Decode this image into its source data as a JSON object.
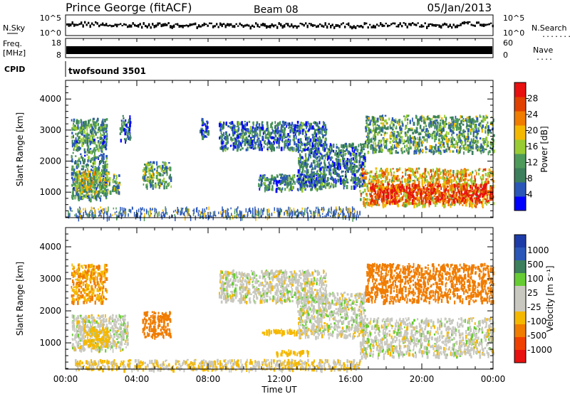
{
  "header": {
    "station": "Prince George (fitACF)",
    "beam": "Beam 08",
    "date": "05/Jan/2013"
  },
  "top_panels": {
    "nsky_label": "N.Sky",
    "nsky_ticks": [
      "10^5",
      "10^0"
    ],
    "nsearch_label": "N.Search",
    "nsearch_ticks": [
      "10^5",
      "10^0"
    ],
    "freq_label": "Freq.",
    "freq_unit": "[MHz]",
    "freq_ticks": [
      "18",
      "8"
    ],
    "nave_label": "Nave",
    "nave_ticks": [
      "60",
      "0"
    ],
    "cpid_label": "CPID",
    "cpid_value": "twofsound 3501"
  },
  "colors": {
    "power": [
      "#0000ff",
      "#2a57b8",
      "#3c7f5c",
      "#4e9a5a",
      "#99cc33",
      "#f5b800",
      "#f07c00",
      "#e04000",
      "#e81010"
    ],
    "velocity": [
      "#e81010",
      "#f04000",
      "#f07c00",
      "#f5b800",
      "#c8c8c0",
      "#c8c8c0",
      "#66cc33",
      "#3c7f5c",
      "#2a57b8",
      "#1e3ca8"
    ]
  },
  "chart_data": [
    {
      "type": "heatmap",
      "name": "power",
      "ylabel": "Slant Range [km]",
      "ylim": [
        180,
        4600
      ],
      "yticks": [
        "4000",
        "3000",
        "2000",
        "1000"
      ],
      "xlim": [
        0,
        24
      ],
      "colorbar": {
        "label": "Power [dB]",
        "range": [
          0,
          32
        ],
        "ticks": [
          "28",
          "24",
          "20",
          "16",
          "12",
          "8",
          "4"
        ]
      },
      "regions": [
        {
          "t0": 0.3,
          "t1": 2.3,
          "r0": 800,
          "r1": 3400,
          "level": 10
        },
        {
          "t0": 0.5,
          "t1": 2.5,
          "r0": 1000,
          "r1": 1700,
          "level": 16
        },
        {
          "t0": 2.6,
          "t1": 3.0,
          "r0": 1000,
          "r1": 1600,
          "level": 12
        },
        {
          "t0": 3.0,
          "t1": 3.6,
          "r0": 2700,
          "r1": 3500,
          "level": 8
        },
        {
          "t0": 4.3,
          "t1": 5.9,
          "r0": 1200,
          "r1": 2000,
          "level": 12
        },
        {
          "t0": 7.5,
          "t1": 8.0,
          "r0": 2800,
          "r1": 3400,
          "level": 6
        },
        {
          "t0": 8.6,
          "t1": 14.6,
          "r0": 2400,
          "r1": 3300,
          "level": 8
        },
        {
          "t0": 10.8,
          "t1": 14.6,
          "r0": 1100,
          "r1": 1600,
          "level": 9
        },
        {
          "t0": 13.0,
          "t1": 16.8,
          "r0": 1200,
          "r1": 2600,
          "level": 8
        },
        {
          "t0": 16.5,
          "t1": 24.0,
          "r0": 600,
          "r1": 1800,
          "level": 20
        },
        {
          "t0": 17.0,
          "t1": 24.0,
          "r0": 700,
          "r1": 1300,
          "level": 28
        },
        {
          "t0": 16.8,
          "t1": 24.0,
          "r0": 2300,
          "r1": 3500,
          "level": 12
        }
      ]
    },
    {
      "type": "heatmap",
      "name": "velocity",
      "xlabel": "Time UT",
      "ylabel": "Slant Range [km]",
      "ylim": [
        180,
        4600
      ],
      "yticks": [
        "4000",
        "3000",
        "2000",
        "1000"
      ],
      "xlim": [
        0,
        24
      ],
      "xticks": [
        "00:00",
        "04:00",
        "08:00",
        "12:00",
        "16:00",
        "20:00",
        "00:00"
      ],
      "colorbar": {
        "label": "Velocity [m s⁻¹]",
        "ticks": [
          "1000",
          "500",
          "100",
          "25",
          "-25",
          "-100",
          "-500",
          "-1000"
        ]
      },
      "regions": [
        {
          "t0": 0.3,
          "t1": 2.3,
          "r0": 2300,
          "r1": 3500,
          "level": -300
        },
        {
          "t0": 0.3,
          "t1": 3.5,
          "r0": 800,
          "r1": 1900,
          "level": 0
        },
        {
          "t0": 1.0,
          "t1": 2.4,
          "r0": 900,
          "r1": 1500,
          "level": -200
        },
        {
          "t0": 4.3,
          "t1": 5.9,
          "r0": 1200,
          "r1": 2000,
          "level": -400
        },
        {
          "t0": 8.6,
          "t1": 14.6,
          "r0": 2300,
          "r1": 3300,
          "level": 0
        },
        {
          "t0": 11.0,
          "t1": 14.0,
          "r0": 1300,
          "r1": 1450,
          "level": -200
        },
        {
          "t0": 11.8,
          "t1": 13.6,
          "r0": 650,
          "r1": 800,
          "level": -200
        },
        {
          "t0": 13.0,
          "t1": 16.8,
          "r0": 1200,
          "r1": 2600,
          "level": 0
        },
        {
          "t0": 16.5,
          "t1": 24.0,
          "r0": 600,
          "r1": 1800,
          "level": 0
        },
        {
          "t0": 16.8,
          "t1": 24.0,
          "r0": 2300,
          "r1": 3500,
          "level": -400
        },
        {
          "t0": 0.5,
          "t1": 16.5,
          "r0": 190,
          "r1": 500,
          "level": -60
        }
      ]
    }
  ]
}
